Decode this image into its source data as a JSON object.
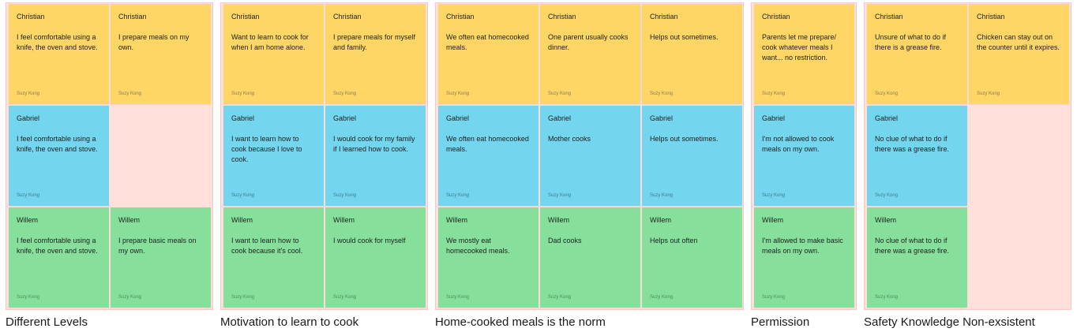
{
  "clusters": [
    {
      "title": "Different Levels",
      "notes": [
        {
          "author": "Christian",
          "text": "I feel comfortable using a knife, the oven and stove.",
          "byline": "Suzy Kong",
          "color": "yellow"
        },
        {
          "author": "Christian",
          "text": "I prepare meals on my own.",
          "byline": "Suzy Kong",
          "color": "yellow"
        },
        {
          "author": "Gabriel",
          "text": "I feel comfortable using a knife, the oven and stove.",
          "byline": "Suzy Kong",
          "color": "blue"
        },
        {
          "author": "Willem",
          "text": "I feel comfortable using a knife, the oven and stove.",
          "byline": "Suzy Kong",
          "color": "green"
        },
        {
          "author": "Willem",
          "text": "I prepare basic meals on my own.",
          "byline": "Suzy Kong",
          "color": "green"
        }
      ]
    },
    {
      "title": "Motivation to learn to cook",
      "notes": [
        {
          "author": "Christian",
          "text": "Want to learn to cook for when I am home alone.",
          "byline": "Suzy Kong",
          "color": "yellow"
        },
        {
          "author": "Christian",
          "text": "I prepare meals for myself and family.",
          "byline": "Suzy Kong",
          "color": "yellow"
        },
        {
          "author": "Gabriel",
          "text": "I want to learn how to cook because I love to cook.",
          "byline": "Suzy Kong",
          "color": "blue"
        },
        {
          "author": "Gabriel",
          "text": "I would cook for my family if I learned how to cook.",
          "byline": "Suzy Kong",
          "color": "blue"
        },
        {
          "author": "Willem",
          "text": "I want to learn how to cook because it's cool.",
          "byline": "Suzy Kong",
          "color": "green"
        },
        {
          "author": "Willem",
          "text": "I would cook for myself",
          "byline": "Suzy Kong",
          "color": "green"
        }
      ]
    },
    {
      "title": "Home-cooked meals is the norm",
      "notes": [
        {
          "author": "Christian",
          "text": "We often eat homecooked meals.",
          "byline": "Suzy Kong",
          "color": "yellow"
        },
        {
          "author": "Christian",
          "text": "One parent usually cooks dinner.",
          "byline": "Suzy Kong",
          "color": "yellow"
        },
        {
          "author": "Christian",
          "text": " Helps out sometimes.",
          "byline": "Suzy Kong",
          "color": "yellow"
        },
        {
          "author": "Gabriel",
          "text": "We often eat homecooked meals.",
          "byline": "Suzy Kong",
          "color": "blue"
        },
        {
          "author": "Gabriel",
          "text": "Mother cooks",
          "byline": "Suzy Kong",
          "color": "blue"
        },
        {
          "author": "Gabriel",
          "text": " Helps out sometimes.",
          "byline": "Suzy Kong",
          "color": "blue"
        },
        {
          "author": "Willem",
          "text": "We mostly eat homecooked meals.",
          "byline": "Suzy Kong",
          "color": "green"
        },
        {
          "author": "Willem",
          "text": "Dad cooks",
          "byline": "Suzy Kong",
          "color": "green"
        },
        {
          "author": "Willem",
          "text": " Helps out often",
          "byline": "Suzy Kong",
          "color": "green"
        }
      ]
    },
    {
      "title": "Permission",
      "notes": [
        {
          "author": "Christian",
          "text": "Parents let me prepare/ cook whatever meals I want... no restriction.",
          "byline": "Suzy Kong",
          "color": "yellow"
        },
        {
          "author": "Gabriel",
          "text": "I'm not allowed to cook meals on my own.",
          "byline": "Suzy Kong",
          "color": "blue"
        },
        {
          "author": "Willem",
          "text": "I'm allowed to make basic meals on my own.",
          "byline": "Suzy Kong",
          "color": "green"
        }
      ]
    },
    {
      "title": "Safety Knowledge Non-exsistent",
      "notes": [
        {
          "author": "Christian",
          "text": "Unsure of what to do if there is a grease fire.",
          "byline": "Suzy Kong",
          "color": "yellow"
        },
        {
          "author": "Christian",
          "text": "Chicken can stay out on the counter until it expires.",
          "byline": "Suzy Kong",
          "color": "yellow"
        },
        {
          "author": "Gabriel",
          "text": "No clue of what to do if there was a grease fire.",
          "byline": "Suzy Kong",
          "color": "blue"
        },
        {
          "author": "Willem",
          "text": "No clue of what to do if there was a grease fire.",
          "byline": "Suzy Kong",
          "color": "green"
        }
      ]
    }
  ]
}
